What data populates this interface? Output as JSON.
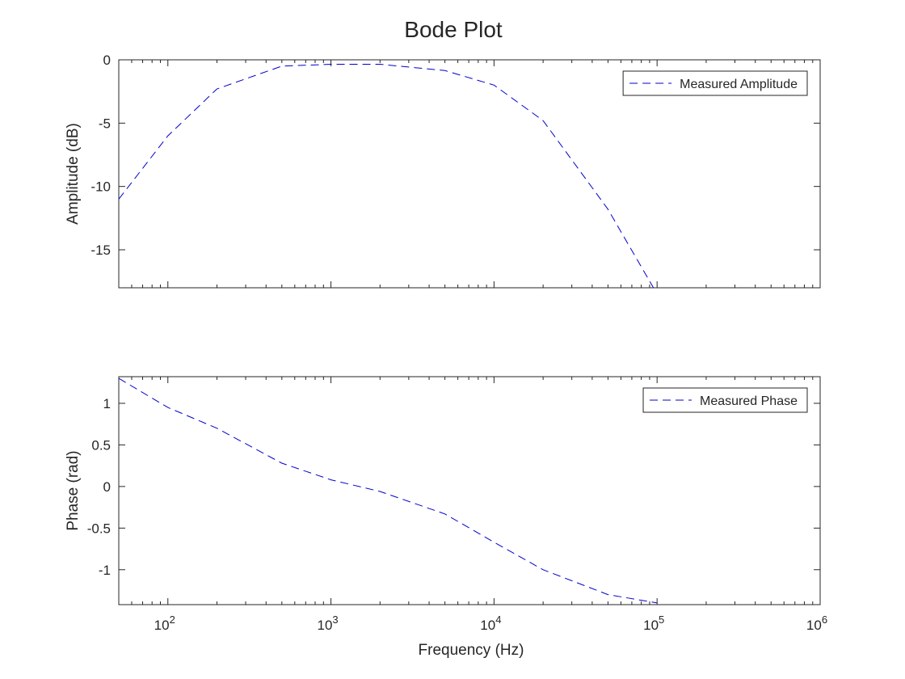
{
  "figure": {
    "title": "Bode Plot"
  },
  "chart_data": [
    {
      "type": "line",
      "title": "Bode Plot",
      "xlabel": "",
      "ylabel": "Amplitude (dB)",
      "xscale": "log",
      "xlim": [
        50,
        1000000
      ],
      "ylim": [
        -18,
        0
      ],
      "x_ticks": [
        100,
        1000,
        10000,
        100000,
        1000000
      ],
      "x_tick_labels": [],
      "y_ticks": [
        0,
        -5,
        -10,
        -15
      ],
      "y_tick_labels": [
        "0",
        "-5",
        "-10",
        "-15"
      ],
      "grid": false,
      "legend": "top-right",
      "series": [
        {
          "name": "Measured Amplitude",
          "color": "#0000cc",
          "line_style": "dashed",
          "x": [
            50,
            100,
            200,
            500,
            1000,
            2000,
            5000,
            10000,
            20000,
            50000,
            100000
          ],
          "y": [
            -11.0,
            -6.0,
            -2.3,
            -0.5,
            -0.35,
            -0.35,
            -0.85,
            -2.0,
            -4.8,
            -11.8,
            -18.5
          ]
        }
      ]
    },
    {
      "type": "line",
      "xlabel": "Frequency (Hz)",
      "ylabel": "Phase (rad)",
      "xscale": "log",
      "xlim": [
        50,
        1000000
      ],
      "ylim": [
        -1.42,
        1.32
      ],
      "x_ticks": [
        100,
        1000,
        10000,
        100000,
        1000000
      ],
      "x_tick_labels": [
        {
          "base": "10",
          "exp": "2"
        },
        {
          "base": "10",
          "exp": "3"
        },
        {
          "base": "10",
          "exp": "4"
        },
        {
          "base": "10",
          "exp": "5"
        },
        {
          "base": "10",
          "exp": "6"
        }
      ],
      "y_ticks": [
        1,
        0.5,
        0,
        -0.5,
        -1
      ],
      "y_tick_labels": [
        "1",
        "0.5",
        "0",
        "-0.5",
        "-1"
      ],
      "grid": false,
      "legend": "top-right",
      "series": [
        {
          "name": "Measured Phase",
          "color": "#0000cc",
          "line_style": "dashed",
          "x": [
            50,
            100,
            200,
            500,
            1000,
            2000,
            5000,
            10000,
            20000,
            50000,
            100000
          ],
          "y": [
            1.3,
            0.95,
            0.7,
            0.28,
            0.08,
            -0.06,
            -0.33,
            -0.67,
            -1.0,
            -1.3,
            -1.4
          ]
        }
      ]
    }
  ]
}
